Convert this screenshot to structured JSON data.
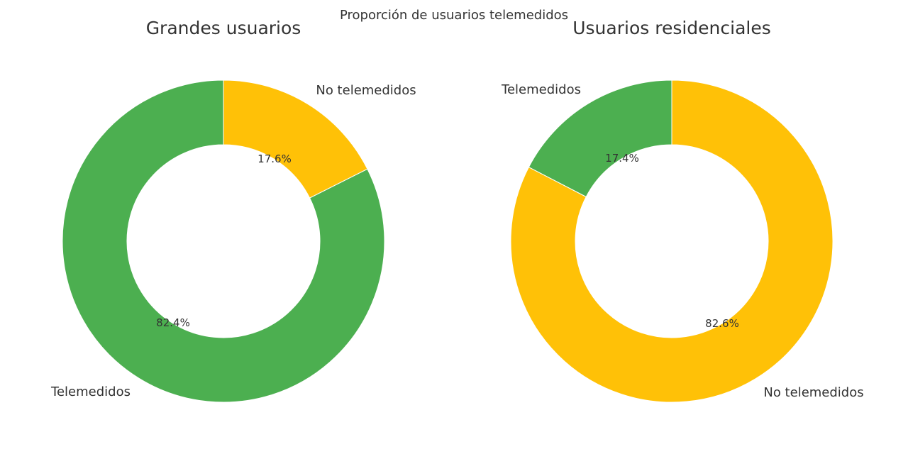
{
  "chart_data": {
    "title": "Proporción de usuarios telemedidos",
    "type": "pie",
    "colors": {
      "telemedidos": "#4caf50",
      "no_telemedidos": "#ffc107"
    },
    "charts": [
      {
        "title": "Grandes usuarios",
        "slices": [
          {
            "label": "Telemedidos",
            "value": 82.4,
            "pct_label": "82.4%",
            "color": "#4caf50"
          },
          {
            "label": "No telemedidos",
            "value": 17.6,
            "pct_label": "17.6%",
            "color": "#ffc107"
          }
        ]
      },
      {
        "title": "Usuarios residenciales",
        "slices": [
          {
            "label": "Telemedidos",
            "value": 17.4,
            "pct_label": "17.4%",
            "color": "#4caf50"
          },
          {
            "label": "No telemedidos",
            "value": 82.6,
            "pct_label": "82.6%",
            "color": "#ffc107"
          }
        ]
      }
    ]
  }
}
